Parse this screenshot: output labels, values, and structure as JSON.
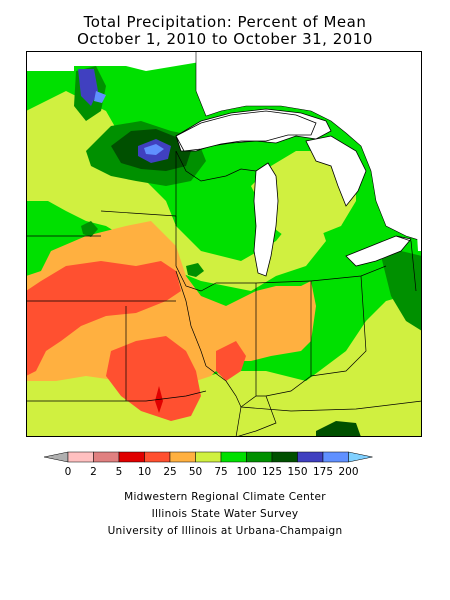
{
  "title": {
    "line1": "Total Precipitation: Percent of Mean",
    "line2": "October 1, 2010 to October 31, 2010"
  },
  "legend": {
    "labels": [
      "0",
      "2",
      "5",
      "10",
      "25",
      "50",
      "75",
      "100",
      "125",
      "150",
      "175",
      "200"
    ],
    "colors": [
      "#b0b0b0",
      "#ffc0c0",
      "#e08080",
      "#e00000",
      "#ff5030",
      "#ffb040",
      "#d0f040",
      "#00e000",
      "#009000",
      "#005000",
      "#4040c0",
      "#6090ff",
      "#80d0ff"
    ]
  },
  "credits": [
    "Midwestern Regional Climate Center",
    "Illinois State Water Survey",
    "University of Illinois at Urbana-Champaign"
  ],
  "map_colors": {
    "lake": "#ffffff",
    "border": "#000000",
    "state_line": "#000000"
  }
}
